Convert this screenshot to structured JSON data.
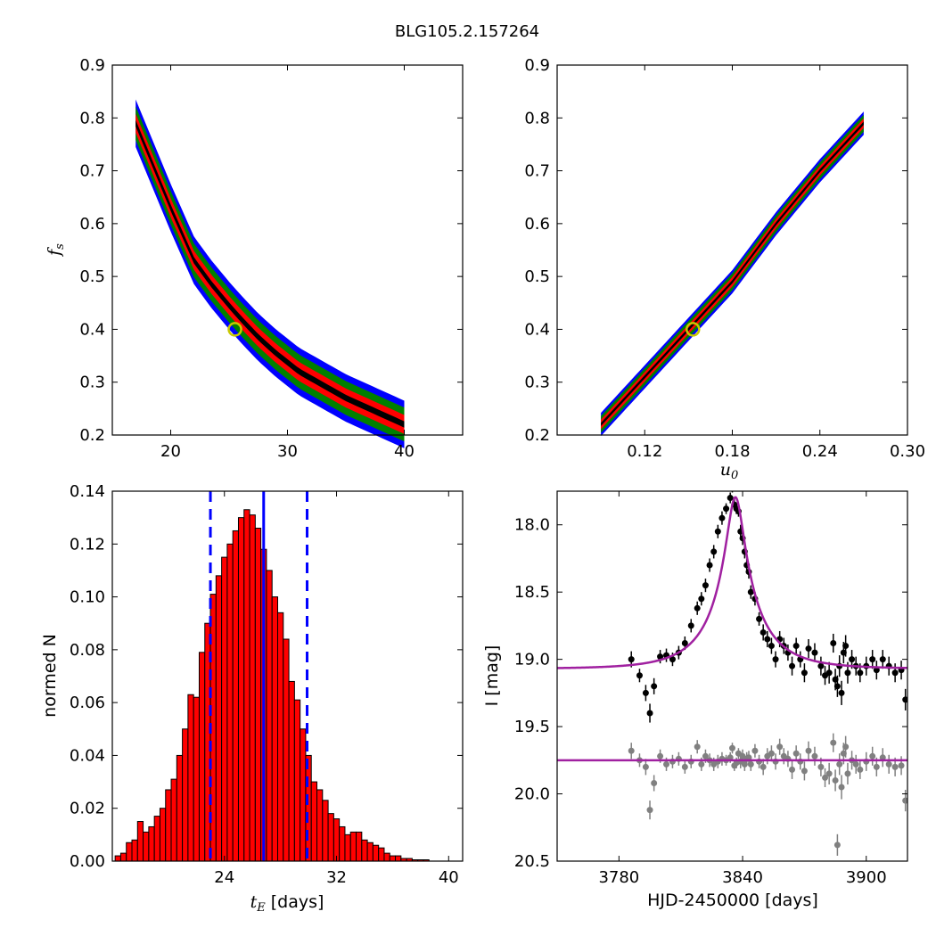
{
  "title": "BLG105.2.157264",
  "colors": {
    "blue": "#0000ff",
    "green": "#008000",
    "red": "#ff0000",
    "black": "#000000",
    "gray": "#808080",
    "purple": "#a020a0",
    "bestfit_ring": "#c8c800"
  },
  "chart_data": [
    {
      "type": "heatmap",
      "panel": "top-left",
      "xlabel": "",
      "ylabel": "f_s",
      "xlim": [
        15,
        45
      ],
      "ylim": [
        0.2,
        0.9
      ],
      "xticks": [
        "20",
        "30",
        "40"
      ],
      "yticks": [
        "0.2",
        "0.3",
        "0.4",
        "0.5",
        "0.6",
        "0.7",
        "0.8",
        "0.9"
      ],
      "best_fit": {
        "x": 25.5,
        "y": 0.4
      },
      "band": {
        "x": [
          17,
          18.5,
          20,
          21,
          22,
          23.5,
          25,
          26,
          27.5,
          29,
          31,
          33,
          35,
          37,
          40
        ],
        "y": [
          0.79,
          0.71,
          0.63,
          0.58,
          0.53,
          0.485,
          0.445,
          0.42,
          0.385,
          0.355,
          0.32,
          0.295,
          0.27,
          0.25,
          0.22
        ]
      },
      "levels": [
        {
          "name": "blue",
          "half_width": 0.045
        },
        {
          "name": "green",
          "half_width": 0.032
        },
        {
          "name": "red",
          "half_width": 0.018
        },
        {
          "name": "black",
          "half_width": 0.006
        }
      ]
    },
    {
      "type": "heatmap",
      "panel": "top-right",
      "xlabel": "u_0",
      "ylabel": "",
      "xlim": [
        0.06,
        0.3
      ],
      "ylim": [
        0.2,
        0.9
      ],
      "xticks": [
        "0.12",
        "0.18",
        "0.24",
        "0.30"
      ],
      "yticks": [
        "0.2",
        "0.3",
        "0.4",
        "0.5",
        "0.6",
        "0.7",
        "0.8",
        "0.9"
      ],
      "best_fit": {
        "x": 0.153,
        "y": 0.4
      },
      "band": {
        "x": [
          0.09,
          0.12,
          0.15,
          0.18,
          0.21,
          0.24,
          0.27
        ],
        "y": [
          0.22,
          0.31,
          0.4,
          0.49,
          0.6,
          0.7,
          0.79
        ]
      },
      "levels": [
        {
          "name": "blue",
          "half_width": 0.022
        },
        {
          "name": "green",
          "half_width": 0.016
        },
        {
          "name": "red",
          "half_width": 0.009
        },
        {
          "name": "black",
          "half_width": 0.003
        }
      ]
    },
    {
      "type": "bar",
      "panel": "bottom-left",
      "xlabel": "t_E  [days]",
      "ylabel": "normed N",
      "xlim": [
        16,
        41
      ],
      "ylim": [
        0,
        0.14
      ],
      "xticks": [
        "24",
        "32",
        "40"
      ],
      "yticks": [
        "0.00",
        "0.02",
        "0.04",
        "0.06",
        "0.08",
        "0.10",
        "0.12",
        "0.14"
      ],
      "bin_start": 16.2,
      "bin_width": 0.4,
      "values": [
        0.002,
        0.003,
        0.007,
        0.008,
        0.015,
        0.011,
        0.013,
        0.017,
        0.02,
        0.027,
        0.031,
        0.04,
        0.05,
        0.063,
        0.062,
        0.079,
        0.09,
        0.101,
        0.108,
        0.115,
        0.12,
        0.125,
        0.13,
        0.133,
        0.131,
        0.126,
        0.118,
        0.11,
        0.1,
        0.094,
        0.084,
        0.068,
        0.061,
        0.05,
        0.04,
        0.03,
        0.027,
        0.023,
        0.018,
        0.016,
        0.013,
        0.01,
        0.011,
        0.011,
        0.008,
        0.007,
        0.006,
        0.005,
        0.003,
        0.002,
        0.002,
        0.001,
        0.001,
        0.0005,
        0.0005,
        0.0005
      ],
      "median": 26.8,
      "bounds": [
        23.0,
        29.9
      ]
    },
    {
      "type": "scatter",
      "panel": "bottom-right",
      "xlabel": "HJD-2450000 [days]",
      "ylabel": "I [mag]",
      "xlim": [
        3750,
        3920
      ],
      "ylim": [
        20.5,
        17.75
      ],
      "xticks": [
        "3780",
        "3840",
        "3900"
      ],
      "yticks": [
        "18.0",
        "18.5",
        "19.0",
        "19.5",
        "20.0",
        "20.5"
      ],
      "model": {
        "t0": 3836.5,
        "tE": 26.0,
        "u0": 0.153,
        "fs": 0.4,
        "base": 19.07
      },
      "residual_level": 19.75,
      "data": [
        [
          3786,
          19.0,
          0.06
        ],
        [
          3790,
          19.12,
          0.05
        ],
        [
          3793,
          19.25,
          0.06
        ],
        [
          3795,
          19.4,
          0.07
        ],
        [
          3797,
          19.2,
          0.06
        ],
        [
          3800,
          18.98,
          0.05
        ],
        [
          3803,
          18.97,
          0.05
        ],
        [
          3806,
          19.0,
          0.05
        ],
        [
          3809,
          18.95,
          0.05
        ],
        [
          3812,
          18.88,
          0.05
        ],
        [
          3815,
          18.75,
          0.05
        ],
        [
          3818,
          18.62,
          0.05
        ],
        [
          3820,
          18.55,
          0.05
        ],
        [
          3822,
          18.45,
          0.05
        ],
        [
          3824,
          18.3,
          0.05
        ],
        [
          3826,
          18.2,
          0.05
        ],
        [
          3828,
          18.05,
          0.05
        ],
        [
          3830,
          17.95,
          0.05
        ],
        [
          3832,
          17.88,
          0.04
        ],
        [
          3834,
          17.8,
          0.04
        ],
        [
          3835,
          17.72,
          0.04
        ],
        [
          3836,
          17.85,
          0.04
        ],
        [
          3837,
          17.88,
          0.04
        ],
        [
          3838,
          17.9,
          0.04
        ],
        [
          3839,
          18.05,
          0.05
        ],
        [
          3840,
          18.1,
          0.05
        ],
        [
          3841,
          18.2,
          0.05
        ],
        [
          3842,
          18.3,
          0.05
        ],
        [
          3843,
          18.35,
          0.05
        ],
        [
          3844,
          18.5,
          0.05
        ],
        [
          3846,
          18.55,
          0.05
        ],
        [
          3848,
          18.7,
          0.05
        ],
        [
          3850,
          18.8,
          0.06
        ],
        [
          3852,
          18.85,
          0.06
        ],
        [
          3854,
          18.9,
          0.06
        ],
        [
          3856,
          19.0,
          0.06
        ],
        [
          3858,
          18.85,
          0.06
        ],
        [
          3860,
          18.9,
          0.06
        ],
        [
          3862,
          18.95,
          0.06
        ],
        [
          3864,
          19.05,
          0.07
        ],
        [
          3866,
          18.9,
          0.06
        ],
        [
          3868,
          19.0,
          0.06
        ],
        [
          3870,
          19.1,
          0.07
        ],
        [
          3872,
          18.92,
          0.07
        ],
        [
          3875,
          18.95,
          0.07
        ],
        [
          3878,
          19.05,
          0.07
        ],
        [
          3880,
          19.12,
          0.07
        ],
        [
          3882,
          19.1,
          0.08
        ],
        [
          3884,
          18.88,
          0.07
        ],
        [
          3885,
          19.15,
          0.08
        ],
        [
          3886,
          19.2,
          0.08
        ],
        [
          3887,
          19.05,
          0.08
        ],
        [
          3888,
          19.25,
          0.09
        ],
        [
          3889,
          18.95,
          0.08
        ],
        [
          3890,
          18.9,
          0.08
        ],
        [
          3891,
          19.1,
          0.08
        ],
        [
          3893,
          19.0,
          0.07
        ],
        [
          3895,
          19.05,
          0.07
        ],
        [
          3897,
          19.1,
          0.07
        ],
        [
          3900,
          19.05,
          0.07
        ],
        [
          3903,
          19.0,
          0.07
        ],
        [
          3905,
          19.08,
          0.07
        ],
        [
          3908,
          19.0,
          0.07
        ],
        [
          3911,
          19.05,
          0.07
        ],
        [
          3914,
          19.1,
          0.07
        ],
        [
          3917,
          19.08,
          0.07
        ],
        [
          3919,
          19.3,
          0.08
        ]
      ],
      "residuals": [
        [
          3786,
          19.68,
          0.06
        ],
        [
          3790,
          19.75,
          0.05
        ],
        [
          3793,
          19.8,
          0.06
        ],
        [
          3795,
          20.12,
          0.07
        ],
        [
          3797,
          19.92,
          0.06
        ],
        [
          3800,
          19.72,
          0.05
        ],
        [
          3803,
          19.78,
          0.05
        ],
        [
          3806,
          19.76,
          0.05
        ],
        [
          3809,
          19.74,
          0.05
        ],
        [
          3812,
          19.8,
          0.05
        ],
        [
          3815,
          19.76,
          0.05
        ],
        [
          3818,
          19.65,
          0.05
        ],
        [
          3820,
          19.78,
          0.05
        ],
        [
          3822,
          19.72,
          0.05
        ],
        [
          3824,
          19.75,
          0.05
        ],
        [
          3826,
          19.78,
          0.05
        ],
        [
          3828,
          19.76,
          0.05
        ],
        [
          3830,
          19.74,
          0.05
        ],
        [
          3832,
          19.75,
          0.04
        ],
        [
          3834,
          19.73,
          0.04
        ],
        [
          3835,
          19.66,
          0.04
        ],
        [
          3836,
          19.79,
          0.04
        ],
        [
          3837,
          19.77,
          0.04
        ],
        [
          3838,
          19.7,
          0.04
        ],
        [
          3839,
          19.76,
          0.05
        ],
        [
          3840,
          19.72,
          0.05
        ],
        [
          3841,
          19.78,
          0.05
        ],
        [
          3842,
          19.74,
          0.05
        ],
        [
          3843,
          19.73,
          0.05
        ],
        [
          3844,
          19.78,
          0.05
        ],
        [
          3846,
          19.68,
          0.05
        ],
        [
          3848,
          19.76,
          0.05
        ],
        [
          3850,
          19.8,
          0.06
        ],
        [
          3852,
          19.72,
          0.06
        ],
        [
          3854,
          19.7,
          0.06
        ],
        [
          3856,
          19.76,
          0.06
        ],
        [
          3858,
          19.65,
          0.06
        ],
        [
          3860,
          19.72,
          0.06
        ],
        [
          3862,
          19.74,
          0.06
        ],
        [
          3864,
          19.82,
          0.07
        ],
        [
          3866,
          19.7,
          0.06
        ],
        [
          3868,
          19.76,
          0.06
        ],
        [
          3870,
          19.83,
          0.07
        ],
        [
          3872,
          19.68,
          0.07
        ],
        [
          3875,
          19.72,
          0.07
        ],
        [
          3878,
          19.8,
          0.07
        ],
        [
          3880,
          19.88,
          0.07
        ],
        [
          3882,
          19.85,
          0.08
        ],
        [
          3884,
          19.62,
          0.07
        ],
        [
          3885,
          19.9,
          0.08
        ],
        [
          3886,
          20.38,
          0.08
        ],
        [
          3887,
          19.78,
          0.08
        ],
        [
          3888,
          19.95,
          0.09
        ],
        [
          3889,
          19.7,
          0.08
        ],
        [
          3890,
          19.65,
          0.08
        ],
        [
          3891,
          19.85,
          0.08
        ],
        [
          3893,
          19.75,
          0.07
        ],
        [
          3895,
          19.78,
          0.07
        ],
        [
          3897,
          19.82,
          0.07
        ],
        [
          3900,
          19.76,
          0.07
        ],
        [
          3903,
          19.72,
          0.07
        ],
        [
          3905,
          19.8,
          0.07
        ],
        [
          3908,
          19.73,
          0.07
        ],
        [
          3911,
          19.78,
          0.07
        ],
        [
          3914,
          19.8,
          0.07
        ],
        [
          3917,
          19.79,
          0.07
        ],
        [
          3919,
          20.05,
          0.08
        ]
      ]
    }
  ]
}
